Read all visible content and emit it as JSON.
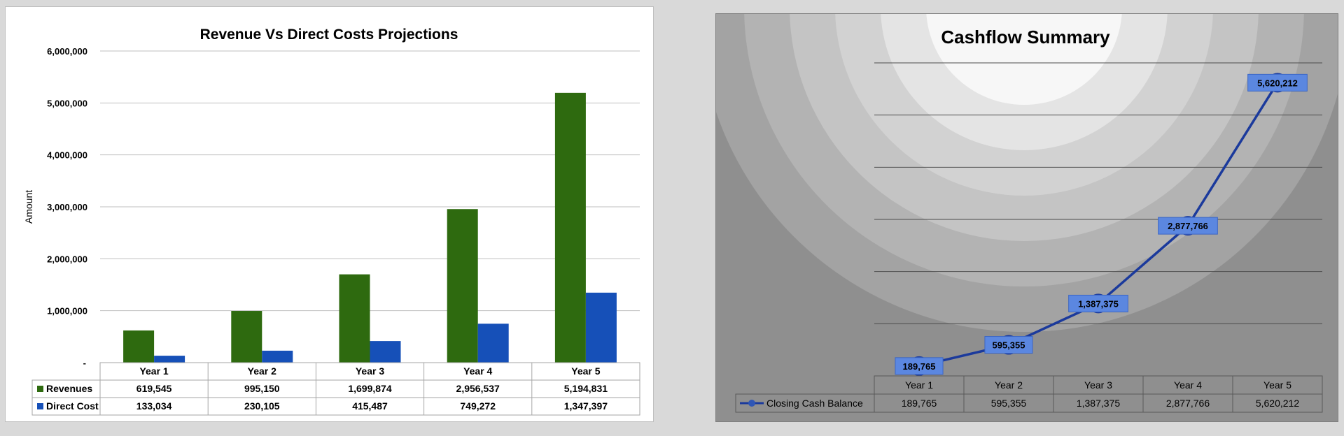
{
  "chart_data": [
    {
      "type": "bar",
      "title": "Revenue Vs Direct Costs Projections",
      "ylabel": "Amount",
      "ylim": [
        0,
        6000000
      ],
      "yticks": [
        "-",
        "1,000,000",
        "2,000,000",
        "3,000,000",
        "4,000,000",
        "5,000,000",
        "6,000,000"
      ],
      "categories": [
        "Year 1",
        "Year 2",
        "Year 3",
        "Year 4",
        "Year 5"
      ],
      "series": [
        {
          "name": "Revenues",
          "color": "#2e6a0f",
          "values": [
            619545,
            995150,
            1699874,
            2956537,
            5194831
          ],
          "labels": [
            "619,545",
            "995,150",
            "1,699,874",
            "2,956,537",
            "5,194,831"
          ]
        },
        {
          "name": "Direct Cost",
          "color": "#1650b8",
          "values": [
            133034,
            230105,
            415487,
            749272,
            1347397
          ],
          "labels": [
            "133,034",
            "230,105",
            "415,487",
            "749,272",
            "1,347,397"
          ]
        }
      ],
      "grid": true,
      "legend": "data-table"
    },
    {
      "type": "line",
      "title": "Cashflow Summary",
      "categories": [
        "Year 1",
        "Year 2",
        "Year 3",
        "Year 4",
        "Year 5"
      ],
      "ylim": [
        0,
        6000000
      ],
      "series": [
        {
          "name": "Closing Cash Balance",
          "color": "#1b3a9c",
          "values": [
            189765,
            595355,
            1387375,
            2877766,
            5620212
          ],
          "labels": [
            "189,765",
            "595,355",
            "1,387,375",
            "2,877,766",
            "5,620,212"
          ]
        }
      ],
      "grid": true,
      "legend": "data-table"
    }
  ]
}
